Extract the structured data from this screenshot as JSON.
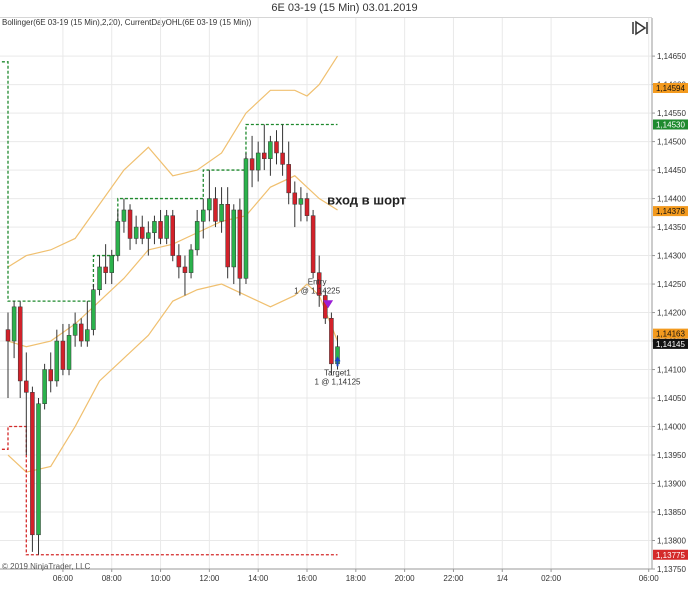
{
  "window": {
    "title": "6E 03-19 (15 Min)  03.01.2019"
  },
  "indicator_caption": "Bollinger(6E 03-19 (15 Min),2,20), CurrentDayOHL(6E 03-19 (15 Min))",
  "copyright": "© 2019 NinjaTrader, LLC",
  "icons": {
    "toggle": "play-pause-toggle-icon"
  },
  "colors": {
    "up_candle": "#2bb24c",
    "down_candle": "#d3212a",
    "wick": "#333333",
    "bollinger": "#f0c070",
    "day_high_line": "#1f8a2e",
    "day_low_line": "#d42a2a",
    "label_orange": "#f39a1e",
    "label_green": "#1e8a2e",
    "label_black": "#111111",
    "label_red": "#d42a2a",
    "grid": "#e9e9e9",
    "target_arrow": "#1a46c4",
    "entry_arrow": "#9b1fd6"
  },
  "chart_data": {
    "type": "candlestick",
    "instrument": "6E 03-19",
    "timeframe": "15 Min",
    "y_ticks": [
      "1,14650",
      "1,14600",
      "1,14550",
      "1,14500",
      "1,14450",
      "1,14400",
      "1,14350",
      "1,14300",
      "1,14250",
      "1,14200",
      "1,14150",
      "1,14100",
      "1,14050",
      "1,14000",
      "1,13950",
      "1,13900",
      "1,13850",
      "1,13800",
      "1,13750"
    ],
    "ylim": [
      1.1375,
      1.1468
    ],
    "x_ticks": [
      "06:00",
      "08:00",
      "10:00",
      "12:00",
      "14:00",
      "16:00",
      "18:00",
      "20:00",
      "22:00",
      "1/4",
      "02:00",
      "06:00"
    ],
    "x_tick_hours": [
      6,
      8,
      10,
      12,
      14,
      16,
      18,
      20,
      22,
      24,
      26,
      30
    ],
    "xlim_hours": [
      3.5,
      30.8
    ],
    "candles": [
      {
        "t": 3.75,
        "o": 1.1417,
        "h": 1.142,
        "l": 1.1405,
        "c": 1.1415
      },
      {
        "t": 4.0,
        "o": 1.1415,
        "h": 1.1422,
        "l": 1.1412,
        "c": 1.1421
      },
      {
        "t": 4.25,
        "o": 1.1421,
        "h": 1.1422,
        "l": 1.1405,
        "c": 1.1408
      },
      {
        "t": 4.5,
        "o": 1.1408,
        "h": 1.1413,
        "l": 1.1395,
        "c": 1.1406
      },
      {
        "t": 4.75,
        "o": 1.1406,
        "h": 1.1407,
        "l": 1.1378,
        "c": 1.1381
      },
      {
        "t": 5.0,
        "o": 1.1381,
        "h": 1.1405,
        "l": 1.13775,
        "c": 1.1404
      },
      {
        "t": 5.25,
        "o": 1.1404,
        "h": 1.1411,
        "l": 1.1403,
        "c": 1.141
      },
      {
        "t": 5.5,
        "o": 1.141,
        "h": 1.1413,
        "l": 1.1406,
        "c": 1.1408
      },
      {
        "t": 5.75,
        "o": 1.1408,
        "h": 1.1417,
        "l": 1.1407,
        "c": 1.1415
      },
      {
        "t": 6.0,
        "o": 1.1415,
        "h": 1.1418,
        "l": 1.1409,
        "c": 1.141
      },
      {
        "t": 6.25,
        "o": 1.141,
        "h": 1.1418,
        "l": 1.1409,
        "c": 1.1416
      },
      {
        "t": 6.5,
        "o": 1.1416,
        "h": 1.142,
        "l": 1.1414,
        "c": 1.1418
      },
      {
        "t": 6.75,
        "o": 1.1418,
        "h": 1.1419,
        "l": 1.1414,
        "c": 1.1415
      },
      {
        "t": 7.0,
        "o": 1.1415,
        "h": 1.1422,
        "l": 1.1414,
        "c": 1.1417
      },
      {
        "t": 7.25,
        "o": 1.1417,
        "h": 1.1425,
        "l": 1.1416,
        "c": 1.1424
      },
      {
        "t": 7.5,
        "o": 1.1424,
        "h": 1.143,
        "l": 1.1423,
        "c": 1.1428
      },
      {
        "t": 7.75,
        "o": 1.1428,
        "h": 1.1432,
        "l": 1.1425,
        "c": 1.1427
      },
      {
        "t": 8.0,
        "o": 1.1427,
        "h": 1.1431,
        "l": 1.1425,
        "c": 1.143
      },
      {
        "t": 8.25,
        "o": 1.143,
        "h": 1.1438,
        "l": 1.1429,
        "c": 1.1436
      },
      {
        "t": 8.5,
        "o": 1.1436,
        "h": 1.144,
        "l": 1.1434,
        "c": 1.1438
      },
      {
        "t": 8.75,
        "o": 1.1438,
        "h": 1.1439,
        "l": 1.1431,
        "c": 1.1433
      },
      {
        "t": 9.0,
        "o": 1.1433,
        "h": 1.1437,
        "l": 1.1432,
        "c": 1.1435
      },
      {
        "t": 9.25,
        "o": 1.1435,
        "h": 1.1437,
        "l": 1.1432,
        "c": 1.1433
      },
      {
        "t": 9.5,
        "o": 1.1433,
        "h": 1.1436,
        "l": 1.143,
        "c": 1.1434
      },
      {
        "t": 9.75,
        "o": 1.1434,
        "h": 1.1437,
        "l": 1.1432,
        "c": 1.1436
      },
      {
        "t": 10.0,
        "o": 1.1436,
        "h": 1.1438,
        "l": 1.1432,
        "c": 1.1433
      },
      {
        "t": 10.25,
        "o": 1.1433,
        "h": 1.1438,
        "l": 1.1432,
        "c": 1.1437
      },
      {
        "t": 10.5,
        "o": 1.1437,
        "h": 1.1438,
        "l": 1.1429,
        "c": 1.143
      },
      {
        "t": 10.75,
        "o": 1.143,
        "h": 1.1432,
        "l": 1.1426,
        "c": 1.1428
      },
      {
        "t": 11.0,
        "o": 1.1428,
        "h": 1.143,
        "l": 1.1423,
        "c": 1.1427
      },
      {
        "t": 11.25,
        "o": 1.1427,
        "h": 1.1432,
        "l": 1.1426,
        "c": 1.1431
      },
      {
        "t": 11.5,
        "o": 1.1431,
        "h": 1.1438,
        "l": 1.143,
        "c": 1.1436
      },
      {
        "t": 11.75,
        "o": 1.1436,
        "h": 1.144,
        "l": 1.1433,
        "c": 1.1438
      },
      {
        "t": 12.0,
        "o": 1.1438,
        "h": 1.1445,
        "l": 1.1436,
        "c": 1.144
      },
      {
        "t": 12.25,
        "o": 1.144,
        "h": 1.1442,
        "l": 1.1435,
        "c": 1.1436
      },
      {
        "t": 12.5,
        "o": 1.1436,
        "h": 1.1442,
        "l": 1.1434,
        "c": 1.1439
      },
      {
        "t": 12.75,
        "o": 1.1439,
        "h": 1.1442,
        "l": 1.1426,
        "c": 1.1428
      },
      {
        "t": 13.0,
        "o": 1.1428,
        "h": 1.1439,
        "l": 1.1425,
        "c": 1.1438
      },
      {
        "t": 13.25,
        "o": 1.1438,
        "h": 1.144,
        "l": 1.1423,
        "c": 1.1426
      },
      {
        "t": 13.5,
        "o": 1.1426,
        "h": 1.1448,
        "l": 1.1425,
        "c": 1.1447
      },
      {
        "t": 13.75,
        "o": 1.1447,
        "h": 1.1451,
        "l": 1.1442,
        "c": 1.1445
      },
      {
        "t": 14.0,
        "o": 1.1445,
        "h": 1.145,
        "l": 1.1443,
        "c": 1.1448
      },
      {
        "t": 14.25,
        "o": 1.1448,
        "h": 1.1453,
        "l": 1.1445,
        "c": 1.1447
      },
      {
        "t": 14.5,
        "o": 1.1447,
        "h": 1.1451,
        "l": 1.1444,
        "c": 1.145
      },
      {
        "t": 14.75,
        "o": 1.145,
        "h": 1.1452,
        "l": 1.1446,
        "c": 1.1448
      },
      {
        "t": 15.0,
        "o": 1.1448,
        "h": 1.1453,
        "l": 1.1444,
        "c": 1.1446
      },
      {
        "t": 15.25,
        "o": 1.1446,
        "h": 1.145,
        "l": 1.1439,
        "c": 1.1441
      },
      {
        "t": 15.5,
        "o": 1.1441,
        "h": 1.1443,
        "l": 1.1435,
        "c": 1.1439
      },
      {
        "t": 15.75,
        "o": 1.1439,
        "h": 1.1442,
        "l": 1.1436,
        "c": 1.144
      },
      {
        "t": 16.0,
        "o": 1.144,
        "h": 1.1441,
        "l": 1.1436,
        "c": 1.1437
      },
      {
        "t": 16.25,
        "o": 1.1437,
        "h": 1.1438,
        "l": 1.1426,
        "c": 1.1427
      },
      {
        "t": 16.5,
        "o": 1.1427,
        "h": 1.143,
        "l": 1.1421,
        "c": 1.1423
      },
      {
        "t": 16.75,
        "o": 1.1423,
        "h": 1.1424,
        "l": 1.1418,
        "c": 1.1419
      },
      {
        "t": 17.0,
        "o": 1.1419,
        "h": 1.142,
        "l": 1.1409,
        "c": 1.1411
      },
      {
        "t": 17.25,
        "o": 1.1411,
        "h": 1.1416,
        "l": 1.141,
        "c": 1.1414
      }
    ],
    "bollinger": {
      "t": [
        3.75,
        4.5,
        5.5,
        6.5,
        7.5,
        8.5,
        9.5,
        10.5,
        11.5,
        12.5,
        13.5,
        14.5,
        15.5,
        16.0,
        16.5,
        17.25
      ],
      "upper": [
        1.1428,
        1.143,
        1.1431,
        1.1433,
        1.1439,
        1.1445,
        1.1449,
        1.1444,
        1.1445,
        1.1448,
        1.1455,
        1.1459,
        1.1459,
        1.1458,
        1.146,
        1.1465
      ],
      "mid": [
        1.1415,
        1.1414,
        1.1415,
        1.1418,
        1.1422,
        1.1426,
        1.1431,
        1.1432,
        1.1434,
        1.1436,
        1.1437,
        1.1442,
        1.1444,
        1.1442,
        1.144,
        1.1438
      ],
      "lower": [
        1.1395,
        1.1392,
        1.1393,
        1.14,
        1.1408,
        1.1412,
        1.1416,
        1.1422,
        1.1424,
        1.1425,
        1.1423,
        1.1421,
        1.1423,
        1.1425,
        1.1423,
        1.1415
      ]
    },
    "day_high_steps": [
      [
        3.5,
        1.1464
      ],
      [
        3.75,
        1.1464
      ],
      [
        3.75,
        1.1422
      ],
      [
        7.25,
        1.1422
      ],
      [
        7.25,
        1.143
      ],
      [
        8.25,
        1.143
      ],
      [
        8.25,
        1.144
      ],
      [
        11.75,
        1.144
      ],
      [
        11.75,
        1.1445
      ],
      [
        13.5,
        1.1445
      ],
      [
        13.5,
        1.1453
      ],
      [
        16.0,
        1.1453
      ],
      [
        17.25,
        1.1453
      ]
    ],
    "day_low_steps": [
      [
        3.5,
        1.1396
      ],
      [
        3.75,
        1.1396
      ],
      [
        3.75,
        1.14
      ],
      [
        4.5,
        1.14
      ],
      [
        4.5,
        1.13775
      ],
      [
        17.25,
        1.13775
      ]
    ],
    "price_labels": [
      {
        "text": "1,14594",
        "value": 1.14594,
        "style": "orange"
      },
      {
        "text": "1,14530",
        "value": 1.1453,
        "style": "green"
      },
      {
        "text": "1,14378",
        "value": 1.14378,
        "style": "orange"
      },
      {
        "text": "1,14163",
        "value": 1.14163,
        "style": "orange"
      },
      {
        "text": "1,14145",
        "value": 1.14145,
        "style": "black"
      },
      {
        "text": "1,13775",
        "value": 1.13775,
        "style": "red"
      }
    ],
    "annotations": {
      "comment": "вход в шорт",
      "entry_name": "Entry",
      "entry_fill": "1 @ 1,14225",
      "entry_time": 16.25,
      "entry_price": 1.14225,
      "target_name": "Target1",
      "target_fill": "1 @ 1,14125",
      "target_time": 17.25,
      "target_price": 1.14125
    }
  }
}
